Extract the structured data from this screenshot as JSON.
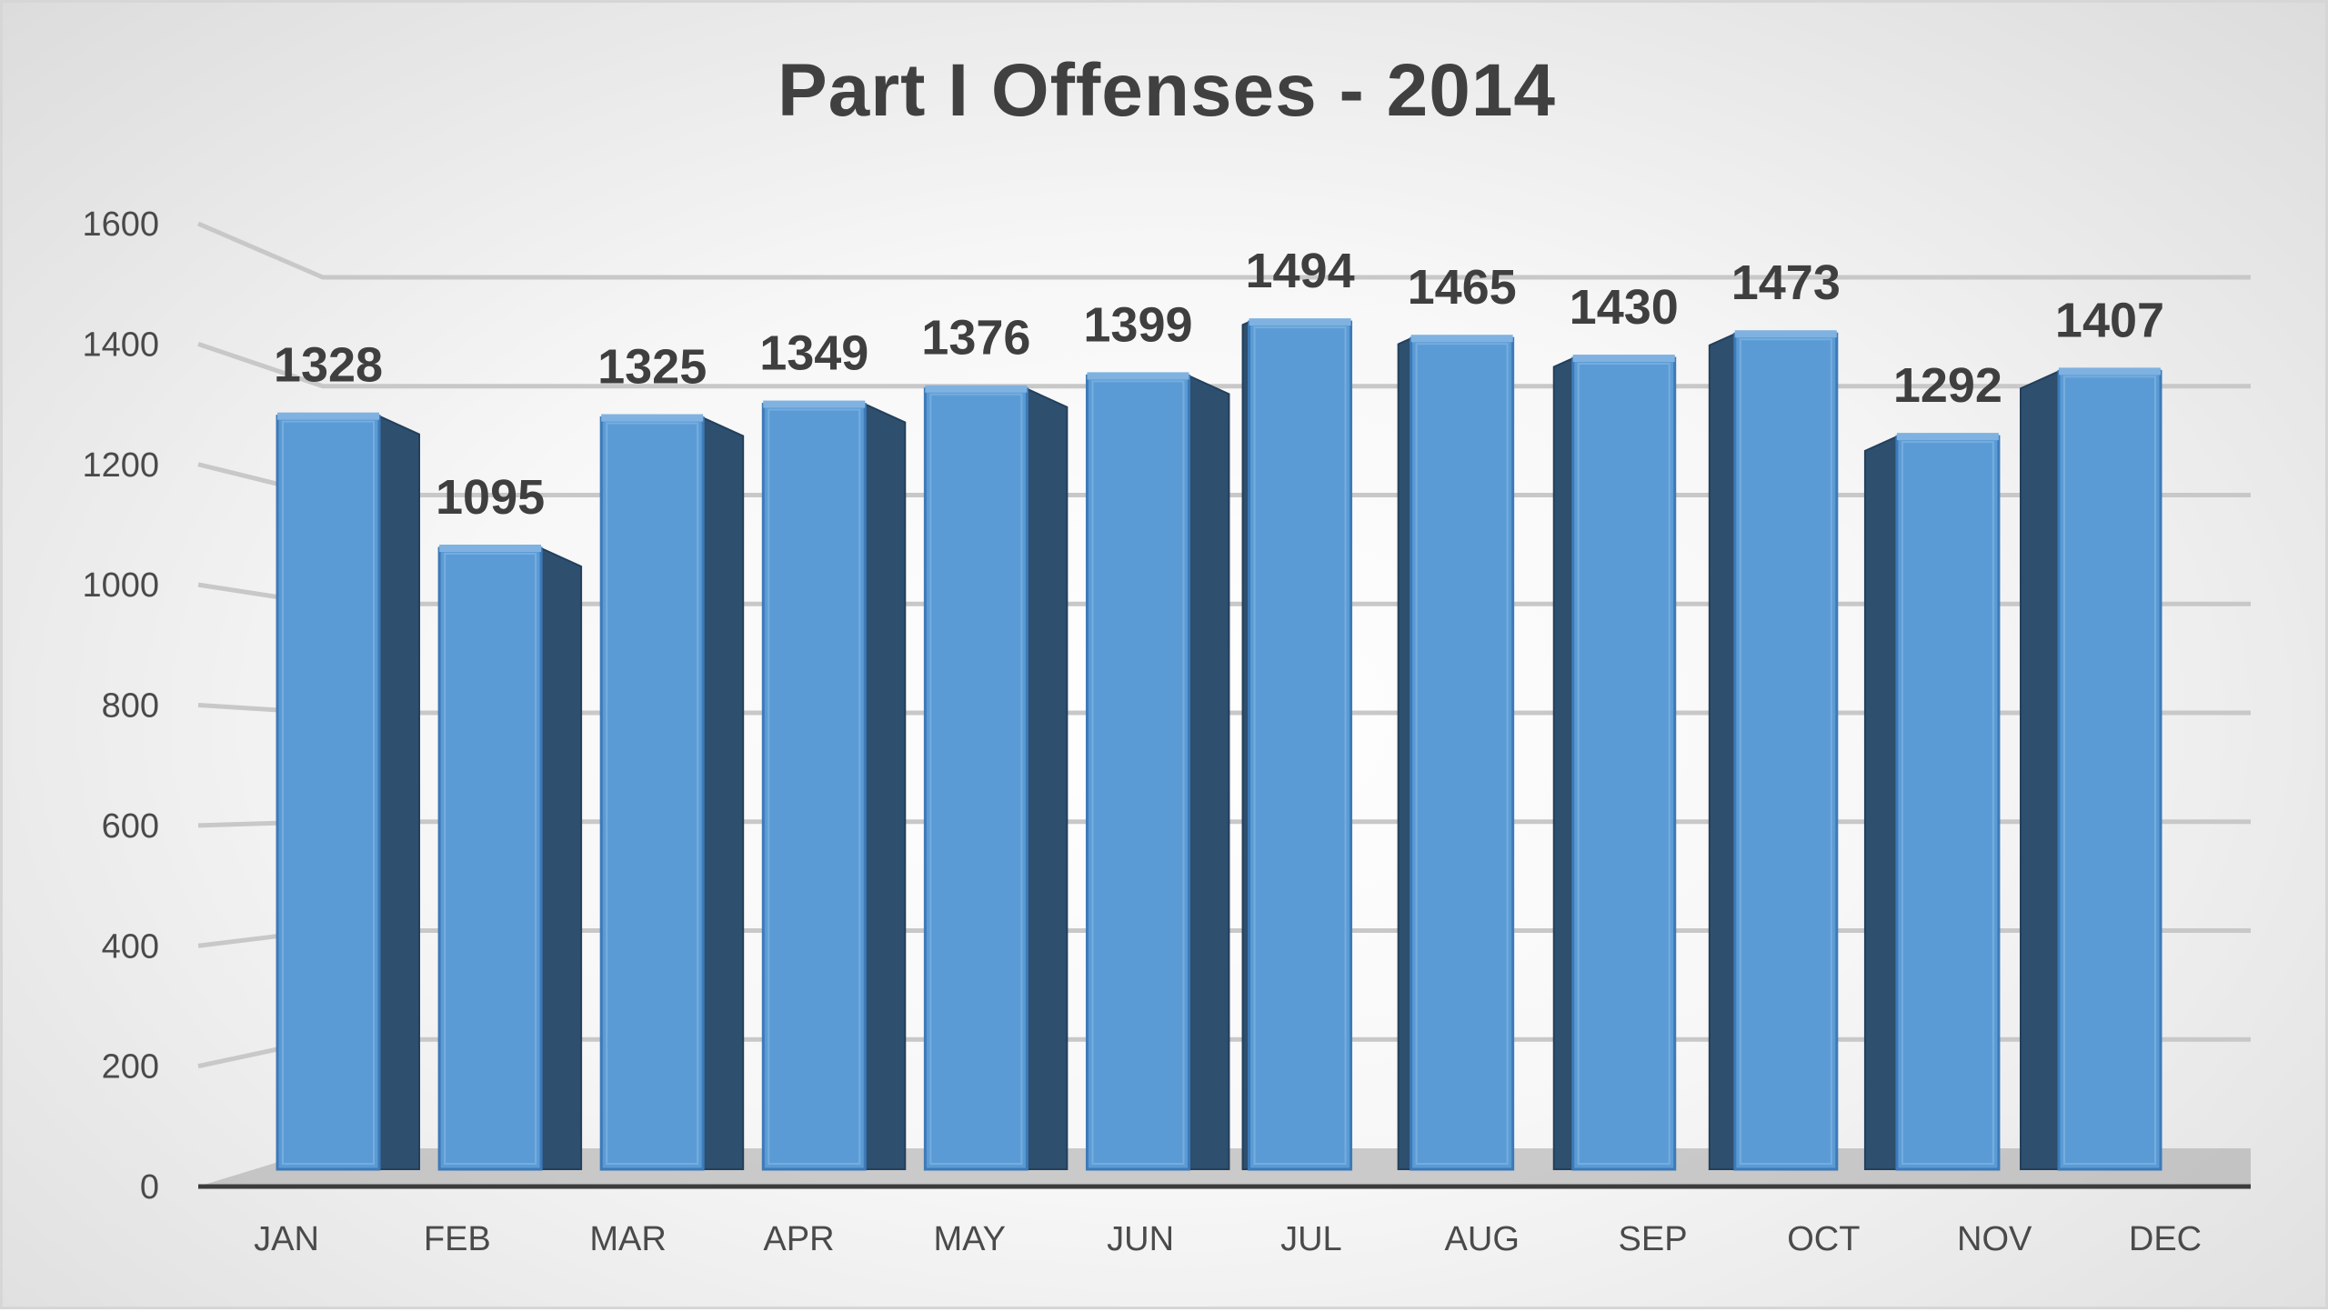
{
  "chart_data": {
    "type": "bar",
    "title": "Part I Offenses - 2014",
    "xlabel": "",
    "ylabel": "",
    "categories": [
      "JAN",
      "FEB",
      "MAR",
      "APR",
      "MAY",
      "JUN",
      "JUL",
      "AUG",
      "SEP",
      "OCT",
      "NOV",
      "DEC"
    ],
    "values": [
      1328,
      1095,
      1325,
      1349,
      1376,
      1399,
      1494,
      1465,
      1430,
      1473,
      1292,
      1407
    ],
    "ylim": [
      0,
      1600
    ],
    "yticks": [
      "0",
      "200",
      "400",
      "600",
      "800",
      "1000",
      "1200",
      "1400",
      "1600"
    ],
    "grid": true,
    "legend": "none",
    "style": "3d-column",
    "colors": {
      "bar_front": "#5b9bd5",
      "bar_side": "#2e4f6e",
      "bar_top": "#7fb2e0",
      "gridline": "#c8c8c8",
      "floor": "#a6a6a6"
    }
  }
}
